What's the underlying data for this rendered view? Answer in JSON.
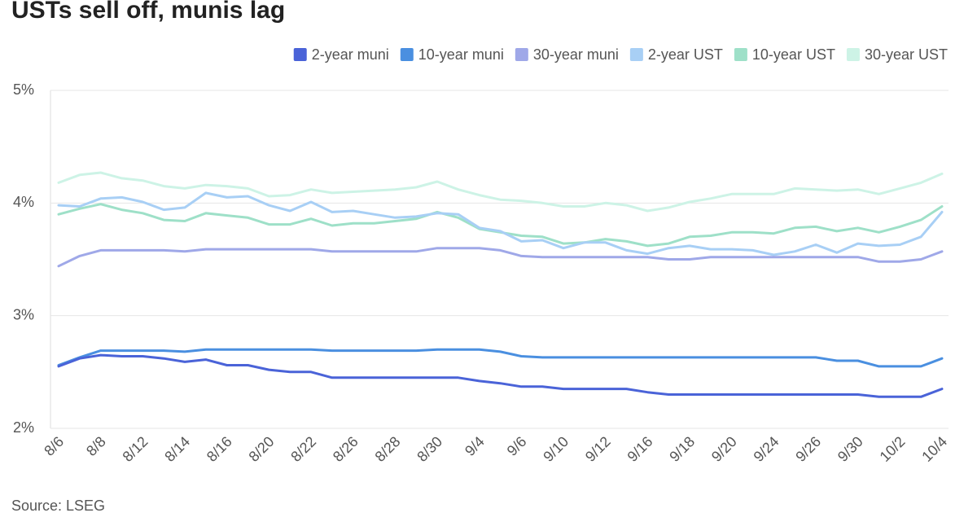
{
  "chart_data": {
    "type": "line",
    "title": "USTs sell off, munis lag",
    "source": "Source: LSEG",
    "categories": [
      "8/6",
      null,
      "8/8",
      null,
      "8/12",
      null,
      "8/14",
      null,
      "8/16",
      null,
      "8/20",
      null,
      "8/22",
      null,
      "8/26",
      null,
      "8/28",
      null,
      "8/30",
      null,
      "9/4",
      null,
      "9/6",
      null,
      "9/10",
      null,
      "9/12",
      null,
      "9/16",
      null,
      "9/18",
      null,
      "9/20",
      null,
      "9/24",
      null,
      "9/26",
      null,
      "9/30",
      null,
      "10/2",
      null,
      "10/4"
    ],
    "series": [
      {
        "name": "2-year muni",
        "color": "#4a63d8",
        "values": [
          2.55,
          2.62,
          2.65,
          2.64,
          2.64,
          2.62,
          2.59,
          2.61,
          2.56,
          2.56,
          2.52,
          2.5,
          2.5,
          2.45,
          2.45,
          2.45,
          2.45,
          2.45,
          2.45,
          2.45,
          2.42,
          2.4,
          2.37,
          2.37,
          2.35,
          2.35,
          2.35,
          2.35,
          2.32,
          2.3,
          2.3,
          2.3,
          2.3,
          2.3,
          2.3,
          2.3,
          2.3,
          2.3,
          2.3,
          2.28,
          2.28,
          2.28,
          2.35
        ]
      },
      {
        "name": "10-year muni",
        "color": "#4a8fe0",
        "values": [
          2.56,
          2.63,
          2.69,
          2.69,
          2.69,
          2.69,
          2.68,
          2.7,
          2.7,
          2.7,
          2.7,
          2.7,
          2.7,
          2.69,
          2.69,
          2.69,
          2.69,
          2.69,
          2.7,
          2.7,
          2.7,
          2.68,
          2.64,
          2.63,
          2.63,
          2.63,
          2.63,
          2.63,
          2.63,
          2.63,
          2.63,
          2.63,
          2.63,
          2.63,
          2.63,
          2.63,
          2.63,
          2.6,
          2.6,
          2.55,
          2.55,
          2.55,
          2.62
        ]
      },
      {
        "name": "30-year muni",
        "color": "#9fa8e8",
        "values": [
          3.44,
          3.53,
          3.58,
          3.58,
          3.58,
          3.58,
          3.57,
          3.59,
          3.59,
          3.59,
          3.59,
          3.59,
          3.59,
          3.57,
          3.57,
          3.57,
          3.57,
          3.57,
          3.6,
          3.6,
          3.6,
          3.58,
          3.53,
          3.52,
          3.52,
          3.52,
          3.52,
          3.52,
          3.52,
          3.5,
          3.5,
          3.52,
          3.52,
          3.52,
          3.52,
          3.52,
          3.52,
          3.52,
          3.52,
          3.48,
          3.48,
          3.5,
          3.57
        ]
      },
      {
        "name": "2-year UST",
        "color": "#a8cff5",
        "values": [
          3.98,
          3.97,
          4.04,
          4.05,
          4.01,
          3.94,
          3.96,
          4.09,
          4.05,
          4.06,
          3.98,
          3.93,
          4.01,
          3.92,
          3.93,
          3.9,
          3.87,
          3.88,
          3.91,
          3.9,
          3.78,
          3.75,
          3.66,
          3.67,
          3.6,
          3.65,
          3.65,
          3.58,
          3.55,
          3.6,
          3.62,
          3.59,
          3.59,
          3.58,
          3.54,
          3.57,
          3.63,
          3.56,
          3.64,
          3.62,
          3.63,
          3.7,
          3.92
        ]
      },
      {
        "name": "10-year UST",
        "color": "#9ee0c8",
        "values": [
          3.9,
          3.95,
          3.99,
          3.94,
          3.91,
          3.85,
          3.84,
          3.91,
          3.89,
          3.87,
          3.81,
          3.81,
          3.86,
          3.8,
          3.82,
          3.82,
          3.84,
          3.86,
          3.92,
          3.87,
          3.77,
          3.74,
          3.71,
          3.7,
          3.64,
          3.65,
          3.68,
          3.66,
          3.62,
          3.64,
          3.7,
          3.71,
          3.74,
          3.74,
          3.73,
          3.78,
          3.79,
          3.75,
          3.78,
          3.74,
          3.79,
          3.85,
          3.97
        ]
      },
      {
        "name": "30-year UST",
        "color": "#cdf3e6",
        "values": [
          4.18,
          4.25,
          4.27,
          4.22,
          4.2,
          4.15,
          4.13,
          4.16,
          4.15,
          4.13,
          4.06,
          4.07,
          4.12,
          4.09,
          4.1,
          4.11,
          4.12,
          4.14,
          4.19,
          4.12,
          4.07,
          4.03,
          4.02,
          4.0,
          3.97,
          3.97,
          4.0,
          3.98,
          3.93,
          3.96,
          4.01,
          4.04,
          4.08,
          4.08,
          4.08,
          4.13,
          4.12,
          4.11,
          4.12,
          4.08,
          4.13,
          4.18,
          4.26
        ]
      }
    ],
    "ylim": [
      2,
      5
    ],
    "yticks": [
      {
        "value": 2,
        "label": "2%"
      },
      {
        "value": 3,
        "label": "3%"
      },
      {
        "value": 4,
        "label": "4%"
      },
      {
        "value": 5,
        "label": "5%"
      }
    ],
    "grid": true
  }
}
